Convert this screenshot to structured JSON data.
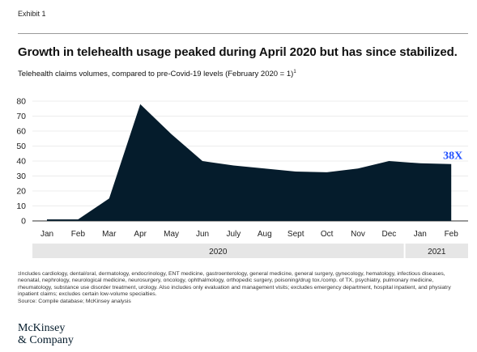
{
  "header": {
    "exhibit_label": "Exhibit 1",
    "title": "Growth in telehealth usage peaked during April 2020 but has since stabilized.",
    "subtitle": "Telehealth claims volumes, compared to pre-Covid-19 levels (February 2020 = 1)",
    "subtitle_footnote_mark": "1"
  },
  "chart_data": {
    "type": "area",
    "categories": [
      "Jan",
      "Feb",
      "Mar",
      "Apr",
      "May",
      "Jun",
      "July",
      "Aug",
      "Sept",
      "Oct",
      "Nov",
      "Dec",
      "Jan",
      "Feb"
    ],
    "values": [
      1,
      1,
      15,
      78,
      58,
      40,
      37,
      35,
      33,
      32.5,
      35,
      40,
      38.5,
      38
    ],
    "year_bands": [
      {
        "label": "2020",
        "start_index": 0,
        "end_index": 11
      },
      {
        "label": "2021",
        "start_index": 12,
        "end_index": 13
      }
    ],
    "y_ticks": [
      0,
      10,
      20,
      30,
      40,
      50,
      60,
      70,
      80
    ],
    "ylim": [
      0,
      80
    ],
    "grid": true,
    "end_label": "38X",
    "colors": {
      "area": "#051c2c",
      "grid": "#d9d9d9",
      "year_band": "#e6e6e6",
      "end_label": "#2251ff"
    }
  },
  "footnote": {
    "mark": "1",
    "text": "Includes cardiology, dental/oral, dermatology, endocrinology, ENT medicine, gastroenterology, general medicine, general surgery, gynecology, hematology, infectious diseases, neonatal, nephrology, neurological medicine, neurosurgery, oncology, ophthalmology, orthopedic surgery, poisoning/drug tox./comp. of TX, psychiatry, pulmonary medicine, rheumatology, substance use disorder treatment, urology. Also includes only evaluation and management visits; excludes emergency department, hospital inpatient, and physiatry inpatient claims; excludes certain low-volume specialties.",
    "source": "Source: Compile database; McKinsey analysis"
  },
  "logo": {
    "line1": "McKinsey",
    "line2": "& Company"
  }
}
